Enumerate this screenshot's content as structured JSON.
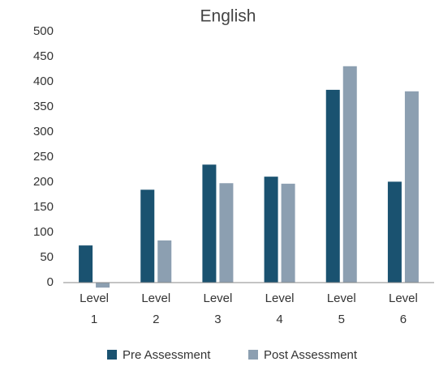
{
  "chart_data": {
    "type": "bar",
    "title": "English",
    "categories": [
      "Level 1",
      "Level 2",
      "Level 3",
      "Level 4",
      "Level 5",
      "Level 6"
    ],
    "series": [
      {
        "name": "Pre Assessment",
        "color": "#1a5270",
        "values": [
          74,
          185,
          235,
          211,
          384,
          201
        ]
      },
      {
        "name": "Post Assessment",
        "color": "#8c9fb1",
        "values": [
          -10,
          84,
          198,
          197,
          431,
          381
        ]
      }
    ],
    "ylim": [
      0,
      500
    ],
    "yticks": [
      0,
      50,
      100,
      150,
      200,
      250,
      300,
      350,
      400,
      450,
      500
    ],
    "grid": false,
    "legend": "bottom"
  }
}
